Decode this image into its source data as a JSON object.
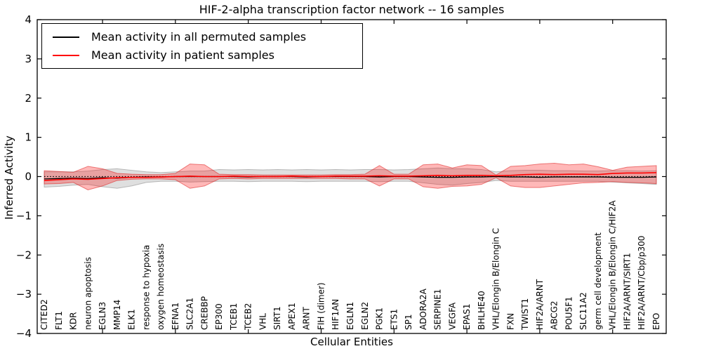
{
  "title": "HIF-2-alpha transcription factor network -- 16 samples",
  "legend": {
    "items": [
      {
        "label": "Mean activity in all permuted samples",
        "color": "#000000"
      },
      {
        "label": "Mean activity in patient samples",
        "color": "#ff0000"
      }
    ]
  },
  "axes": {
    "xlabel": "Cellular Entities",
    "ylabel": "Inferred Activity",
    "ytick_values": [
      4,
      3,
      2,
      1,
      0,
      -1,
      -2,
      -3,
      -4
    ],
    "ytick_labels": [
      "4",
      "3",
      "2",
      "1",
      "0",
      "−1",
      "−2",
      "−3",
      "−4"
    ]
  },
  "chart_data": {
    "type": "line",
    "title": "HIF-2-alpha transcription factor network -- 16 samples",
    "xlabel": "Cellular Entities",
    "ylabel": "Inferred Activity",
    "ylim": [
      -4,
      4
    ],
    "grid": false,
    "legend_position": "upper left",
    "x_major_tick_indices": [
      4,
      9,
      14,
      19,
      24,
      29,
      34,
      39
    ],
    "baseline": {
      "value": 0,
      "color": "#000000",
      "style": "dotted"
    },
    "categories": [
      "CITED2",
      "FLT1",
      "KDR",
      "neuron apoptosis",
      "EGLN3",
      "MMP14",
      "ELK1",
      "response to hypoxia",
      "oxygen homeostasis",
      "EFNA1",
      "SLC2A1",
      "CREBBP",
      "EP300",
      "TCEB1",
      "TCEB2",
      "VHL",
      "SIRT1",
      "APEX1",
      "ARNT",
      "FIH (dimer)",
      "HIF1AN",
      "EGLN1",
      "EGLN2",
      "PGK1",
      "ETS1",
      "SP1",
      "ADORA2A",
      "SERPINE1",
      "VEGFA",
      "EPAS1",
      "BHLHE40",
      "VHL/Elongin B/Elongin C",
      "FXN",
      "TWIST1",
      "HIF2A/ARNT",
      "ABCG2",
      "POU5F1",
      "SLC11A2",
      "germ cell development",
      "VHL/Elongin B/Elongin C/HIF2A",
      "HIF2A/ARNT/SIRT1",
      "HIF2A/ARNT/Cbp/p300",
      "EPO"
    ],
    "series": [
      {
        "name": "Mean activity in all permuted samples",
        "color": "#000000",
        "width": 1.3,
        "values": [
          -0.06,
          -0.05,
          -0.04,
          -0.05,
          -0.03,
          -0.04,
          -0.02,
          -0.01,
          -0.01,
          0,
          0,
          0,
          0,
          0,
          -0.01,
          0,
          0,
          0,
          -0.01,
          0,
          0,
          0,
          0,
          -0.01,
          0,
          0,
          -0.01,
          -0.02,
          -0.02,
          -0.01,
          -0.01,
          0,
          -0.01,
          -0.01,
          -0.02,
          -0.01,
          -0.01,
          -0.01,
          -0.01,
          -0.02,
          -0.02,
          -0.02,
          -0.01
        ]
      },
      {
        "name": "Mean activity in patient samples",
        "color": "#ff0000",
        "width": 1.6,
        "values": [
          -0.1,
          -0.08,
          -0.06,
          -0.07,
          -0.05,
          -0.03,
          -0.02,
          -0.02,
          -0.01,
          0,
          0.01,
          0,
          0,
          0.01,
          0,
          0,
          0,
          0.01,
          0,
          0,
          0.01,
          0.01,
          0.01,
          0.02,
          0.01,
          0.01,
          0.02,
          0.03,
          0.02,
          0.03,
          0.03,
          0.02,
          0.03,
          0.05,
          0.06,
          0.05,
          0.06,
          0.06,
          0.05,
          0.08,
          0.09,
          0.09,
          0.1
        ]
      }
    ],
    "bands": [
      {
        "name": "permuted samples range",
        "fill": "rgba(128,128,128,0.25)",
        "edge": "rgba(128,128,128,0.5)",
        "upper": [
          0.12,
          0.12,
          0.12,
          0.14,
          0.18,
          0.2,
          0.16,
          0.12,
          0.1,
          0.12,
          0.14,
          0.14,
          0.18,
          0.17,
          0.18,
          0.17,
          0.18,
          0.17,
          0.18,
          0.17,
          0.18,
          0.17,
          0.18,
          0.18,
          0.17,
          0.18,
          0.2,
          0.22,
          0.2,
          0.2,
          0.18,
          0.12,
          0.15,
          0.16,
          0.16,
          0.15,
          0.15,
          0.14,
          0.14,
          0.15,
          0.15,
          0.14,
          0.15
        ],
        "lower": [
          -0.27,
          -0.25,
          -0.22,
          -0.2,
          -0.26,
          -0.3,
          -0.24,
          -0.15,
          -0.12,
          -0.12,
          -0.14,
          -0.13,
          -0.12,
          -0.12,
          -0.13,
          -0.12,
          -0.12,
          -0.12,
          -0.13,
          -0.12,
          -0.12,
          -0.12,
          -0.12,
          -0.13,
          -0.12,
          -0.12,
          -0.16,
          -0.2,
          -0.22,
          -0.18,
          -0.15,
          -0.1,
          -0.12,
          -0.12,
          -0.12,
          -0.12,
          -0.12,
          -0.12,
          -0.12,
          -0.14,
          -0.16,
          -0.18,
          -0.2
        ]
      },
      {
        "name": "patient samples range",
        "fill": "rgba(255,0,0,0.28)",
        "edge": "rgba(220,30,30,0.55)",
        "upper": [
          0.15,
          0.13,
          0.11,
          0.26,
          0.2,
          0.08,
          0.06,
          0.05,
          0.05,
          0.08,
          0.32,
          0.3,
          0.06,
          0.05,
          0.05,
          0.04,
          0.04,
          0.04,
          0.04,
          0.04,
          0.05,
          0.05,
          0.06,
          0.28,
          0.06,
          0.06,
          0.3,
          0.32,
          0.22,
          0.3,
          0.28,
          0.04,
          0.26,
          0.28,
          0.32,
          0.34,
          0.3,
          0.32,
          0.25,
          0.16,
          0.24,
          0.26,
          0.28
        ],
        "lower": [
          -0.19,
          -0.18,
          -0.15,
          -0.34,
          -0.24,
          -0.1,
          -0.07,
          -0.06,
          -0.06,
          -0.08,
          -0.3,
          -0.24,
          -0.06,
          -0.05,
          -0.06,
          -0.05,
          -0.05,
          -0.05,
          -0.05,
          -0.05,
          -0.05,
          -0.06,
          -0.06,
          -0.24,
          -0.06,
          -0.06,
          -0.26,
          -0.3,
          -0.25,
          -0.24,
          -0.2,
          -0.03,
          -0.24,
          -0.28,
          -0.28,
          -0.24,
          -0.2,
          -0.16,
          -0.15,
          -0.13,
          -0.15,
          -0.16,
          -0.18
        ]
      }
    ]
  }
}
